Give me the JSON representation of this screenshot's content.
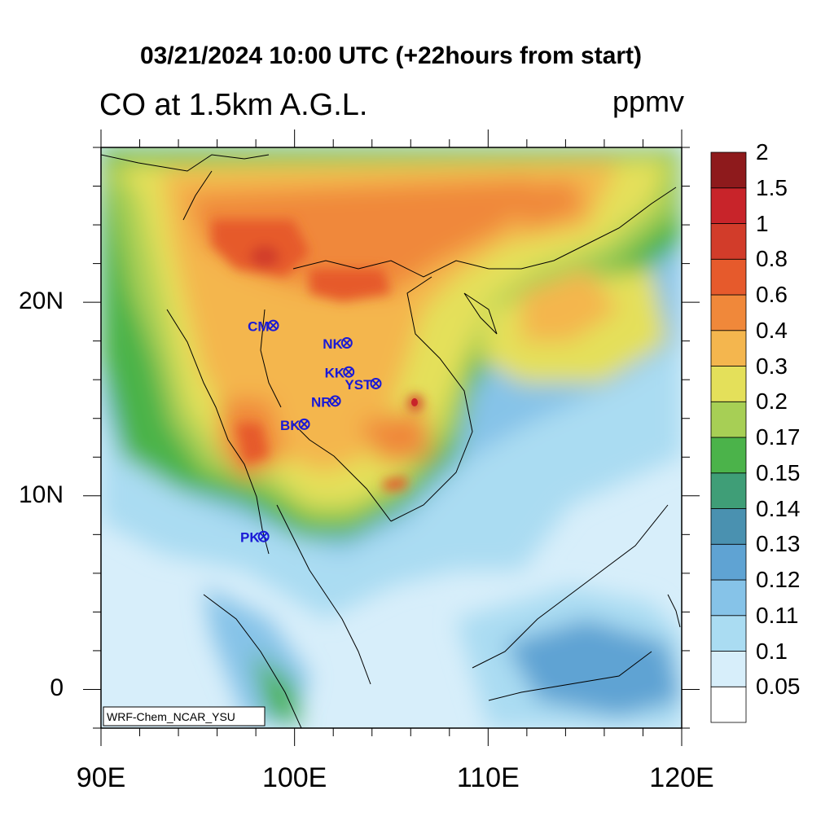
{
  "header": {
    "title": "03/21/2024 10:00 UTC (+22hours from start)",
    "left_title": "CO at 1.5km A.G.L.",
    "units": "ppmv"
  },
  "map": {
    "lon_range": [
      90,
      120
    ],
    "lat_range": [
      -2,
      28
    ],
    "watermark": "WRF-Chem_NCAR_YSU",
    "lat_ticks": [
      {
        "label": "20N",
        "lat": 20
      },
      {
        "label": "10N",
        "lat": 10
      },
      {
        "label": "0",
        "lat": 0
      }
    ],
    "lon_ticks": [
      {
        "label": "90E",
        "lon": 90
      },
      {
        "label": "100E",
        "lon": 100
      },
      {
        "label": "110E",
        "lon": 110
      },
      {
        "label": "120E",
        "lon": 120
      }
    ],
    "stations": [
      {
        "code": "CM",
        "lon": 98.9,
        "lat": 18.8
      },
      {
        "code": "NK",
        "lon": 102.7,
        "lat": 17.9
      },
      {
        "code": "KK",
        "lon": 102.8,
        "lat": 16.4
      },
      {
        "code": "YST",
        "lon": 104.2,
        "lat": 15.8
      },
      {
        "code": "NR",
        "lon": 102.1,
        "lat": 14.9
      },
      {
        "code": "BK",
        "lon": 100.5,
        "lat": 13.7
      },
      {
        "code": "PK",
        "lon": 98.4,
        "lat": 7.9
      }
    ]
  },
  "colorbar": {
    "levels": [
      "0.05",
      "0.1",
      "0.11",
      "0.12",
      "0.13",
      "0.14",
      "0.15",
      "0.17",
      "0.2",
      "0.3",
      "0.4",
      "0.6",
      "0.8",
      "1",
      "1.5",
      "2"
    ],
    "colors": [
      "#ffffff",
      "#d7eefa",
      "#aadcf2",
      "#86c3e8",
      "#5fa3d3",
      "#4a91b0",
      "#3f9e77",
      "#4bb34a",
      "#a7cf55",
      "#e4e05a",
      "#f4b64e",
      "#f0883a",
      "#e65a2c",
      "#d23c2a",
      "#c8242a",
      "#8e1a1c"
    ]
  }
}
